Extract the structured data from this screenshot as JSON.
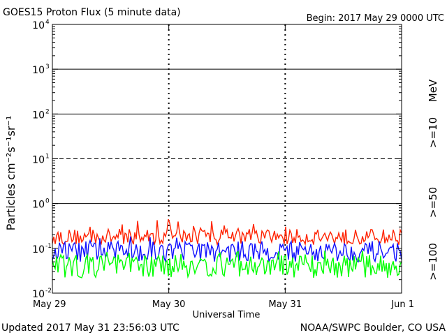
{
  "header": {
    "title": "GOES15 Proton Flux (5 minute data)",
    "begin": "Begin: 2017 May 29 0000 UTC"
  },
  "footer": {
    "updated": "Updated 2017 May 31 23:56:03 UTC",
    "credit": "NOAA/SWPC Boulder, CO USA"
  },
  "chart_data": {
    "type": "line",
    "title": "GOES15 Proton Flux (5 minute data)",
    "xlabel": "Universal Time",
    "ylabel": "Particles cm⁻²s⁻¹sr⁻¹",
    "y_scale": "log",
    "ylim": [
      0.01,
      10000
    ],
    "y_ticks": [
      {
        "value": 0.01,
        "base": "10",
        "exp": "-2"
      },
      {
        "value": 0.1,
        "base": "10",
        "exp": "-1"
      },
      {
        "value": 1,
        "base": "10",
        "exp": "0"
      },
      {
        "value": 10,
        "base": "10",
        "exp": "1"
      },
      {
        "value": 100,
        "base": "10",
        "exp": "2"
      },
      {
        "value": 1000,
        "base": "10",
        "exp": "3"
      },
      {
        "value": 10000,
        "base": "10",
        "exp": "4"
      }
    ],
    "x_ticks": [
      {
        "label": "May 29",
        "value": "2017-05-29"
      },
      {
        "label": "May 30",
        "value": "2017-05-30"
      },
      {
        "label": "May 31",
        "value": "2017-05-31"
      },
      {
        "label": "Jun 1",
        "value": "2017-06-01"
      }
    ],
    "xlim": [
      "2017-05-29",
      "2017-06-01"
    ],
    "thresholds": [
      {
        "value": 1,
        "style": "solid"
      },
      {
        "value": 10,
        "style": "dashed"
      },
      {
        "value": 100,
        "style": "solid"
      },
      {
        "value": 1000,
        "style": "solid"
      }
    ],
    "legend_unit": "MeV",
    "legend_position": "right",
    "series": [
      {
        "name": ">=10",
        "color": "#ff2200",
        "min": 0.12,
        "typical": 0.18,
        "max": 0.45
      },
      {
        "name": ">=50",
        "color": "#1010ff",
        "min": 0.05,
        "typical": 0.085,
        "max": 0.2
      },
      {
        "name": ">=100",
        "color": "#00ff00",
        "min": 0.022,
        "typical": 0.04,
        "max": 0.09
      }
    ]
  }
}
